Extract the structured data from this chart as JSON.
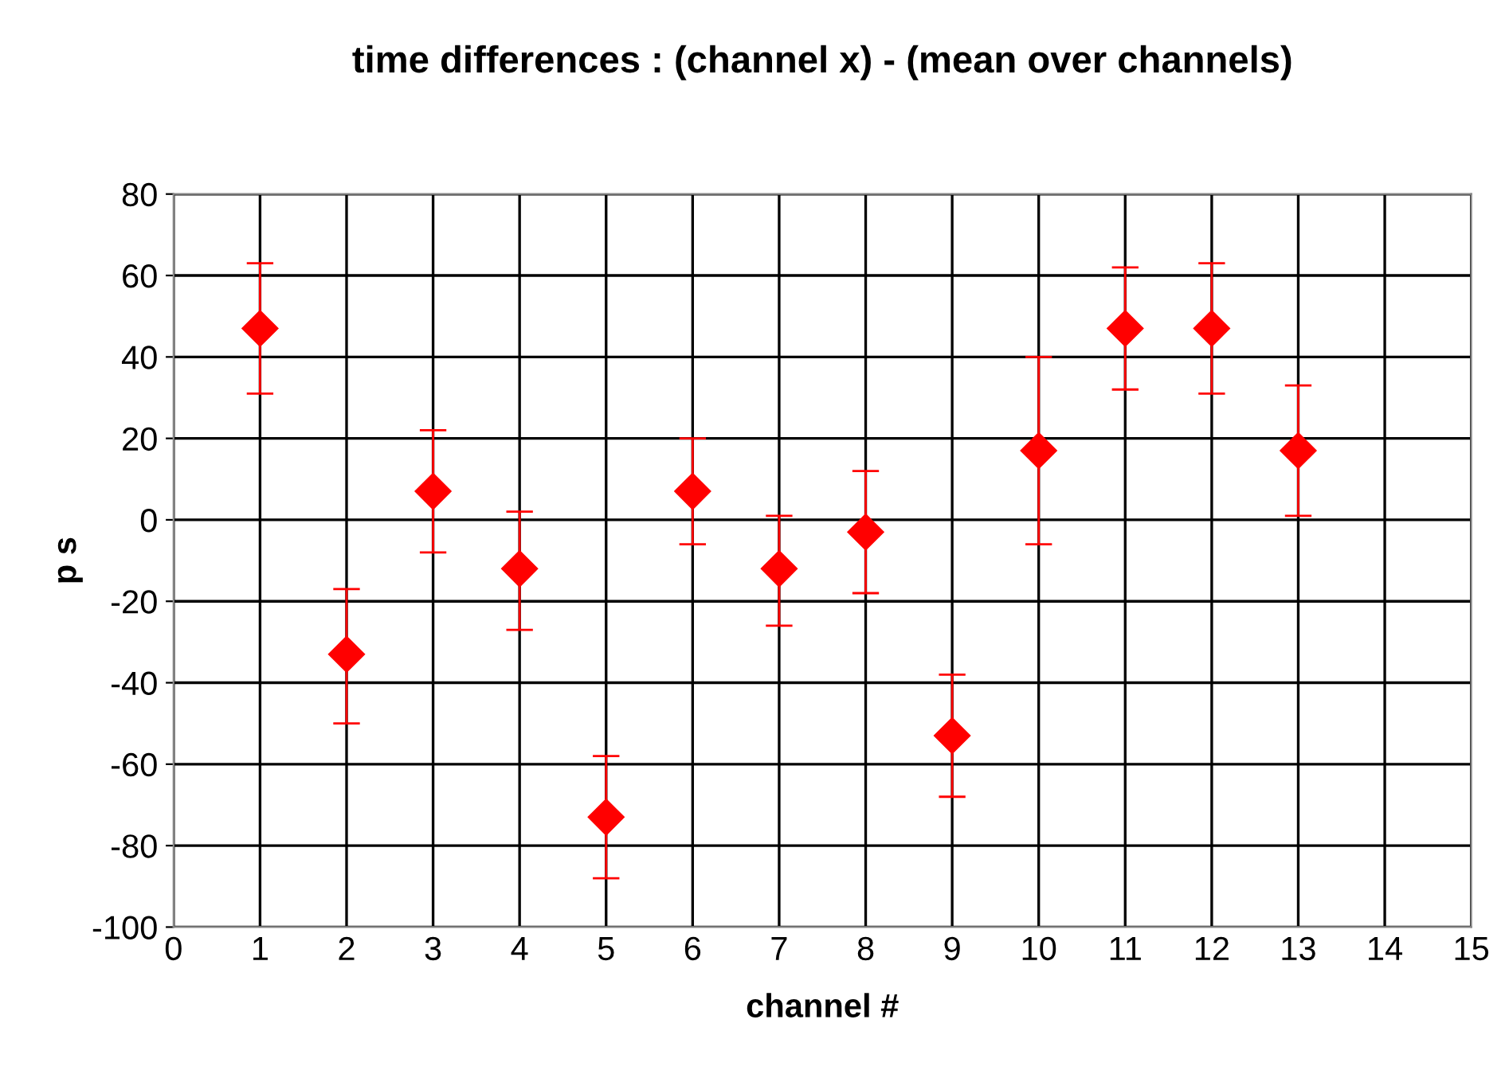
{
  "chart_data": {
    "type": "scatter",
    "title": "time differences : (channel x) - (mean over channels)",
    "xlabel": "channel #",
    "ylabel": "p s",
    "x": [
      1,
      2,
      3,
      4,
      5,
      6,
      7,
      8,
      9,
      10,
      11,
      12,
      13
    ],
    "values": [
      47,
      -33,
      7,
      -12,
      -73,
      7,
      -12,
      -3,
      -53,
      17,
      47,
      47,
      17
    ],
    "errors": [
      [
        31,
        63
      ],
      [
        -50,
        -17
      ],
      [
        -8,
        22
      ],
      [
        -27,
        2
      ],
      [
        -88,
        -58
      ],
      [
        -6,
        20
      ],
      [
        -26,
        1
      ],
      [
        -18,
        12
      ],
      [
        -68,
        -38
      ],
      [
        -6,
        40
      ],
      [
        32,
        62
      ],
      [
        31,
        63
      ],
      [
        1,
        33
      ]
    ],
    "color": "#ff0000",
    "marker": "diamond",
    "xlim": [
      0,
      15
    ],
    "xticks": [
      0,
      1,
      2,
      3,
      4,
      5,
      6,
      7,
      8,
      9,
      10,
      11,
      12,
      13,
      14,
      15
    ],
    "ylim": [
      -100,
      80
    ],
    "yticks": [
      -100,
      -80,
      -60,
      -40,
      -20,
      0,
      20,
      40,
      60,
      80
    ],
    "grid": true,
    "legend": false
  }
}
